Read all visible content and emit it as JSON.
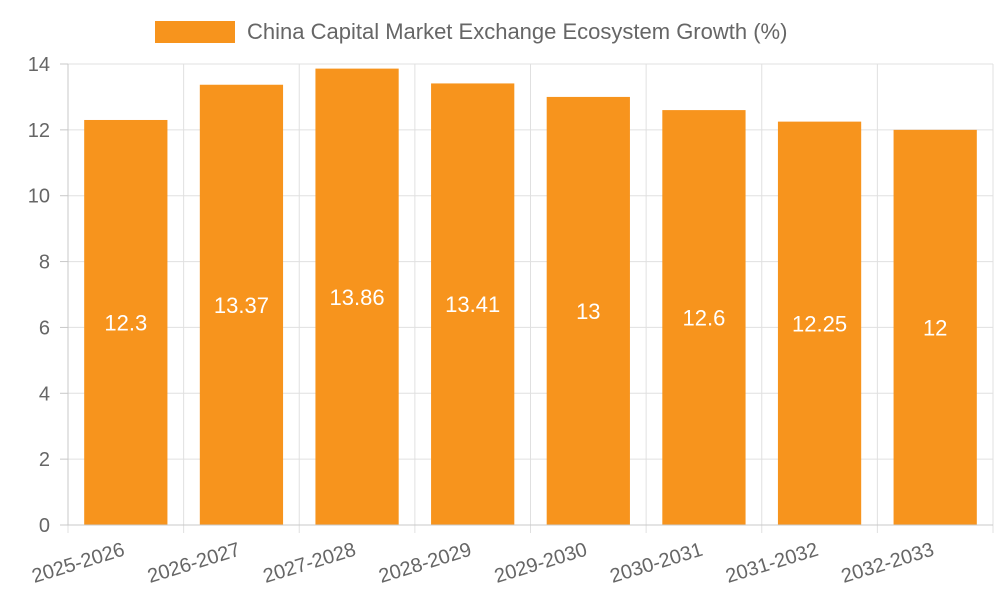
{
  "chart_data": {
    "type": "bar",
    "title": "",
    "xlabel": "",
    "ylabel": "",
    "categories": [
      "2025-2026",
      "2026-2027",
      "2027-2028",
      "2028-2029",
      "2029-2030",
      "2030-2031",
      "2031-2032",
      "2032-2033"
    ],
    "series": [
      {
        "name": "China Capital Market Exchange Ecosystem Growth (%)",
        "values": [
          12.3,
          13.37,
          13.86,
          13.41,
          13,
          12.6,
          12.25,
          12
        ],
        "color": "#f7941d"
      }
    ],
    "ylim": [
      0,
      14
    ],
    "yticks": [
      0,
      2,
      4,
      6,
      8,
      10,
      12,
      14
    ],
    "grid": true,
    "legend_position": "top",
    "data_labels": [
      "12.3",
      "13.37",
      "13.86",
      "13.41",
      "13",
      "12.6",
      "12.25",
      "12"
    ]
  }
}
